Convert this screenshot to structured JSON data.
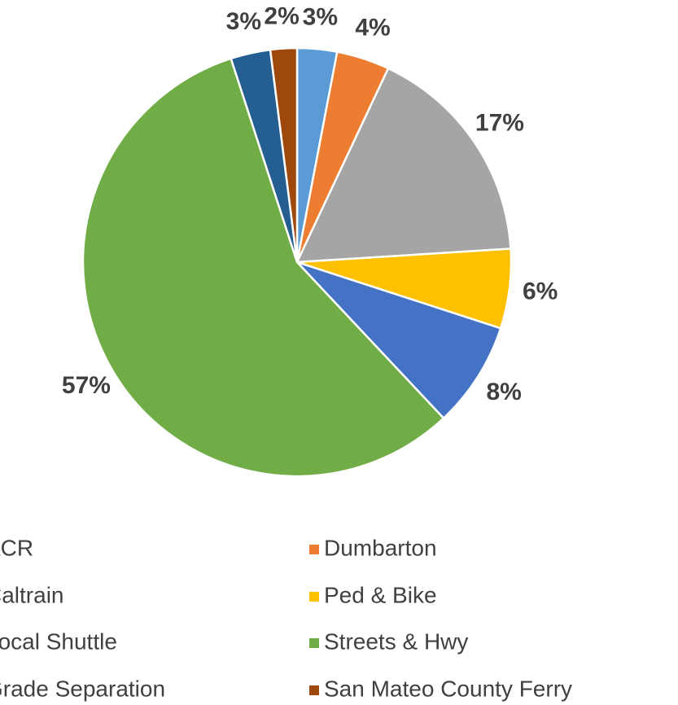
{
  "chart_data": {
    "type": "pie",
    "categories": [
      "ACR",
      "Dumbarton",
      "Caltrain",
      "Ped & Bike",
      "Local Shuttle",
      "Streets & Hwy",
      "Grade Separation",
      "San Mateo County Ferry"
    ],
    "values": [
      3,
      4,
      17,
      6,
      8,
      57,
      3,
      2
    ],
    "colors": [
      "#5b9bd5",
      "#ed7d31",
      "#a5a5a5",
      "#ffc000",
      "#4472c4",
      "#70ad47",
      "#255e91",
      "#9e480e"
    ],
    "legend": "bottom"
  }
}
